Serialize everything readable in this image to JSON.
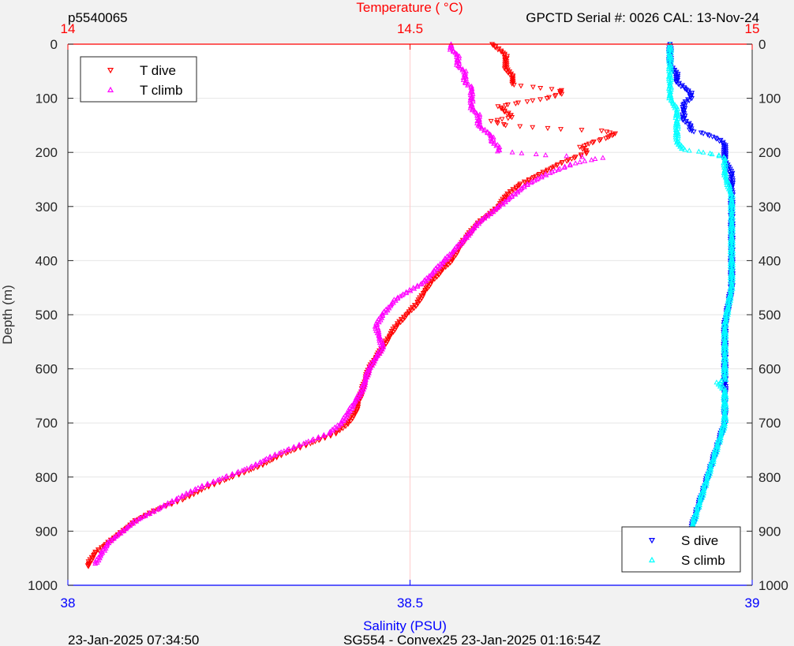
{
  "header": {
    "profile_id": "p5540065",
    "serial_info": "GPCTD Serial #: 0026 CAL: 13-Nov-24"
  },
  "footer": {
    "timestamp_left": "23-Jan-2025 07:34:50",
    "mission_info": "SG554 - Convex25 23-Jan-2025 01:16:54Z"
  },
  "colors": {
    "t_dive": "#ff0000",
    "t_climb": "#ff00ff",
    "s_dive": "#0000ff",
    "s_climb": "#00ffff",
    "top_axis": "#ff0000",
    "bottom_axis": "#0000ff",
    "grid": "#e6e6e6",
    "center_line": "#ffcccc",
    "background": "#f2f2f2"
  },
  "chart_data": {
    "type": "scatter",
    "y_axis": {
      "label": "Depth (m)",
      "range": [
        0,
        1000
      ],
      "reversed": true,
      "ticks": [
        0,
        100,
        200,
        300,
        400,
        500,
        600,
        700,
        800,
        900,
        1000
      ],
      "grid": true
    },
    "top_axis": {
      "label": "Temperature (    °C)",
      "range": [
        14,
        15
      ],
      "ticks": [
        "14",
        "14.5",
        "15"
      ]
    },
    "bottom_axis": {
      "label": "Salinity (PSU)",
      "range": [
        38,
        39
      ],
      "ticks": [
        "38",
        "38.5",
        "39"
      ]
    },
    "legend_top": {
      "placement": "top-left",
      "entries": [
        {
          "name": "T dive",
          "marker": "triangle-down",
          "color": "#ff0000"
        },
        {
          "name": "T climb",
          "marker": "triangle-up",
          "color": "#ff00ff"
        }
      ]
    },
    "legend_bottom": {
      "placement": "bottom-right",
      "entries": [
        {
          "name": "S dive",
          "marker": "triangle-down",
          "color": "#0000ff"
        },
        {
          "name": "S climb",
          "marker": "triangle-up",
          "color": "#00ffff"
        }
      ]
    },
    "series": [
      {
        "name": "T dive",
        "axis": "temperature",
        "marker": "triangle-down",
        "color": "#ff0000",
        "depth": [
          0,
          10,
          20,
          30,
          45,
          60,
          75,
          85,
          92,
          100,
          108,
          115,
          125,
          135,
          142,
          150,
          157,
          160,
          165,
          172,
          180,
          190,
          200,
          210,
          220,
          240,
          260,
          280,
          300,
          330,
          360,
          400,
          440,
          480,
          520,
          560,
          600,
          640,
          680,
          700,
          720,
          740,
          760,
          780,
          800,
          820,
          840,
          860,
          880,
          900,
          920,
          940,
          960,
          965
        ],
        "temp": [
          14.62,
          14.63,
          14.64,
          14.64,
          14.64,
          14.65,
          14.65,
          14.72,
          14.72,
          14.7,
          14.66,
          14.63,
          14.64,
          14.65,
          14.62,
          14.64,
          14.72,
          14.78,
          14.8,
          14.79,
          14.77,
          14.75,
          14.76,
          14.74,
          14.72,
          14.69,
          14.66,
          14.64,
          14.63,
          14.6,
          14.58,
          14.56,
          14.53,
          14.51,
          14.48,
          14.46,
          14.44,
          14.43,
          14.42,
          14.41,
          14.39,
          14.35,
          14.31,
          14.28,
          14.24,
          14.2,
          14.17,
          14.13,
          14.1,
          14.08,
          14.06,
          14.04,
          14.03,
          14.03
        ]
      },
      {
        "name": "T climb",
        "axis": "temperature",
        "marker": "triangle-up",
        "color": "#ff00ff",
        "depth": [
          0,
          10,
          20,
          30,
          40,
          50,
          60,
          70,
          80,
          90,
          100,
          110,
          120,
          130,
          140,
          150,
          160,
          170,
          180,
          190,
          198,
          205,
          210,
          220,
          240,
          260,
          280,
          300,
          330,
          360,
          400,
          440,
          470,
          500,
          520,
          560,
          600,
          640,
          680,
          700,
          720,
          740,
          760,
          780,
          800,
          820,
          840,
          860,
          880,
          900,
          920,
          940,
          960
        ],
        "temp": [
          14.56,
          14.56,
          14.57,
          14.57,
          14.57,
          14.58,
          14.58,
          14.58,
          14.59,
          14.59,
          14.59,
          14.59,
          14.59,
          14.6,
          14.6,
          14.6,
          14.61,
          14.62,
          14.62,
          14.63,
          14.63,
          14.7,
          14.78,
          14.74,
          14.7,
          14.67,
          14.65,
          14.63,
          14.6,
          14.58,
          14.55,
          14.52,
          14.48,
          14.46,
          14.45,
          14.46,
          14.44,
          14.43,
          14.41,
          14.4,
          14.38,
          14.34,
          14.3,
          14.27,
          14.23,
          14.19,
          14.16,
          14.13,
          14.1,
          14.08,
          14.06,
          14.05,
          14.04
        ]
      },
      {
        "name": "S dive",
        "axis": "salinity",
        "marker": "triangle-down",
        "color": "#0000ff",
        "depth": [
          0,
          20,
          40,
          55,
          70,
          80,
          90,
          100,
          110,
          120,
          130,
          140,
          150,
          160,
          165,
          175,
          185,
          200,
          215,
          240,
          280,
          320,
          380,
          450,
          520,
          580,
          620,
          660,
          700,
          740,
          780,
          820,
          860,
          900,
          930,
          960
        ],
        "sal": [
          38.88,
          38.88,
          38.88,
          38.89,
          38.89,
          38.9,
          38.91,
          38.91,
          38.9,
          38.9,
          38.9,
          38.9,
          38.91,
          38.91,
          38.93,
          38.95,
          38.96,
          38.96,
          38.96,
          38.97,
          38.97,
          38.97,
          38.97,
          38.97,
          38.96,
          38.96,
          38.96,
          38.96,
          38.96,
          38.95,
          38.94,
          38.93,
          38.92,
          38.91,
          38.9,
          38.9
        ]
      },
      {
        "name": "S climb",
        "axis": "salinity",
        "marker": "triangle-up",
        "color": "#00ffff",
        "depth": [
          0,
          20,
          40,
          60,
          80,
          100,
          120,
          140,
          160,
          180,
          195,
          200,
          205,
          210,
          220,
          240,
          280,
          320,
          380,
          450,
          520,
          580,
          620,
          625,
          640,
          660,
          700,
          740,
          780,
          820,
          860,
          900,
          930,
          960
        ],
        "sal": [
          38.88,
          38.88,
          38.88,
          38.88,
          38.88,
          38.88,
          38.89,
          38.89,
          38.89,
          38.89,
          38.9,
          38.93,
          38.95,
          38.96,
          38.96,
          38.96,
          38.97,
          38.97,
          38.97,
          38.97,
          38.96,
          38.96,
          38.96,
          38.95,
          38.96,
          38.96,
          38.96,
          38.95,
          38.94,
          38.93,
          38.92,
          38.91,
          38.9,
          38.9
        ]
      }
    ]
  }
}
